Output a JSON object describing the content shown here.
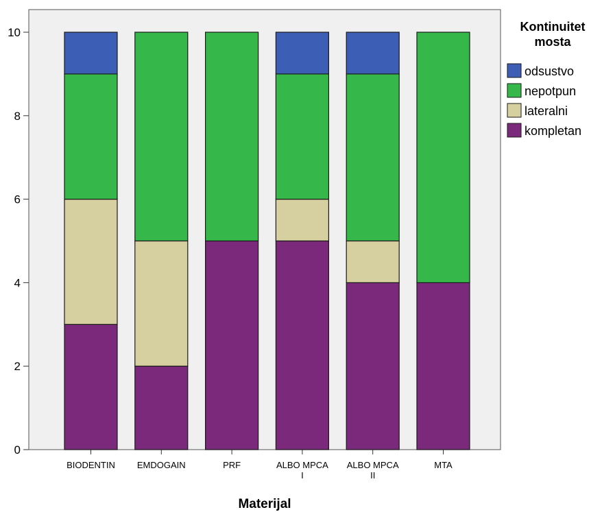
{
  "chart_data": {
    "type": "bar",
    "stacked": true,
    "categories": [
      "BIODENTIN",
      "EMDOGAIN",
      "PRF",
      "ALBO MPCA I",
      "ALBO MPCA II",
      "MTA"
    ],
    "category_label_lines": [
      [
        "BIODENTIN"
      ],
      [
        "EMDOGAIN"
      ],
      [
        "PRF"
      ],
      [
        "ALBO MPCA",
        "I"
      ],
      [
        "ALBO MPCA",
        "II"
      ],
      [
        "MTA"
      ]
    ],
    "series": [
      {
        "name": "kompletan",
        "color": "#7b2a7b",
        "values": [
          3,
          2,
          5,
          5,
          4,
          4
        ]
      },
      {
        "name": "lateralni",
        "color": "#d6cfa0",
        "values": [
          3,
          3,
          0,
          1,
          1,
          0
        ]
      },
      {
        "name": "nepotpun",
        "color": "#35b74a",
        "values": [
          3,
          5,
          5,
          3,
          4,
          6
        ]
      },
      {
        "name": "odsustvo",
        "color": "#3d5eb5",
        "values": [
          1,
          0,
          0,
          1,
          1,
          0
        ]
      }
    ],
    "xlabel": "Materijal",
    "ylabel": "",
    "ylim": [
      0,
      10
    ],
    "yticks": [
      0,
      2,
      4,
      6,
      8,
      10
    ],
    "grid": false,
    "plot_background": "#f0f0f0",
    "legend": {
      "title": "Kontinuitet mosta",
      "title_lines": [
        "Kontinuitet",
        "mosta"
      ],
      "position": "right",
      "items": [
        "odsustvo",
        "nepotpun",
        "lateralni",
        "kompletan"
      ]
    }
  }
}
